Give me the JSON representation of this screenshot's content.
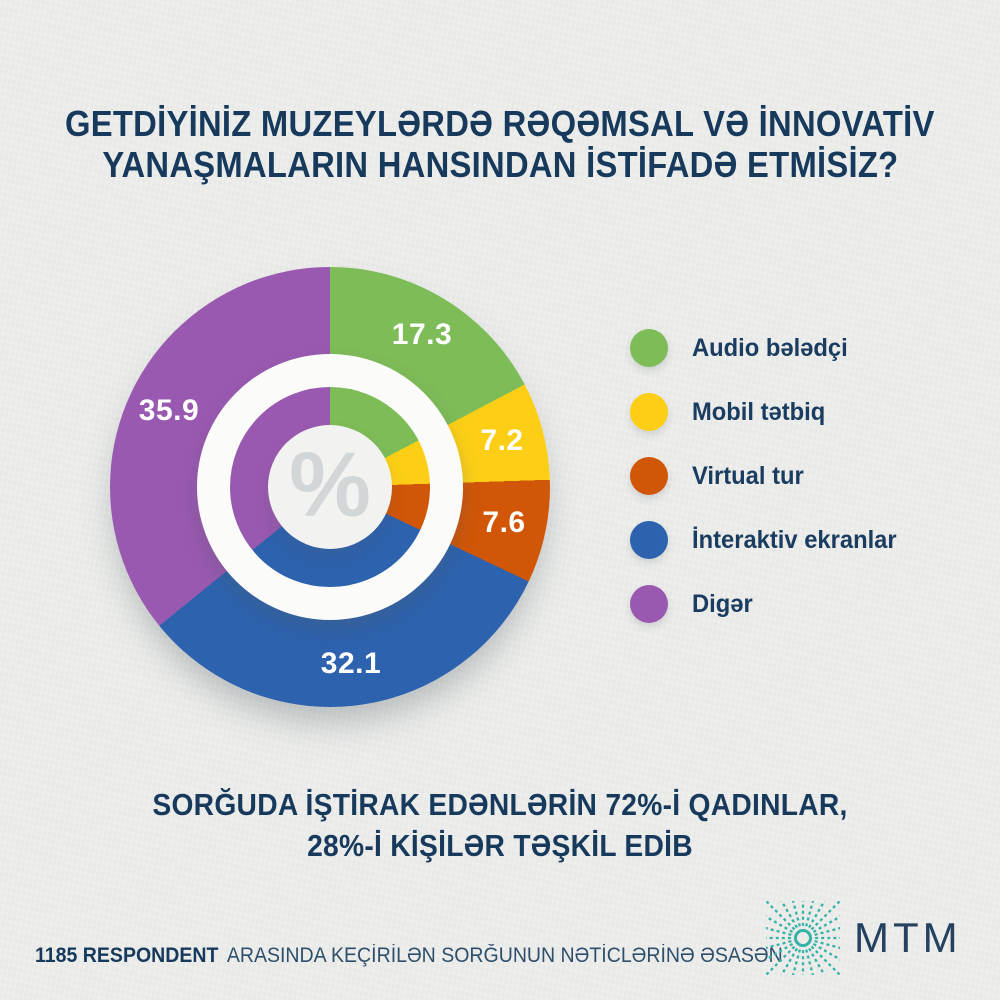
{
  "title": {
    "line1": "GETDİYİNİZ MUZEYLƏRDƏ RƏQƏMSAL VƏ İNNOVATİV",
    "line2": "YANAŞMALARIN HANSINDAN İSTİFADƏ ETMİSİZ?"
  },
  "chart_data": {
    "type": "pie",
    "variant": "double-donut",
    "title": "GETDİYİNİZ MUZEYLƏRDƏ RƏQƏMSAL VƏ İNNOVATİV YANAŞMALARIN HANSINDAN İSTİFADƏ ETMİSİZ?",
    "unit": "%",
    "center_symbol": "%",
    "start_angle_deg": 0,
    "direction": "clockwise",
    "legend_position": "right",
    "categories": [
      "Audio bələdçi",
      "Mobil tətbiq",
      "Virtual tur",
      "İnteraktiv ekranlar",
      "Digər"
    ],
    "values": [
      17.3,
      7.2,
      7.6,
      32.1,
      35.9
    ],
    "segments": [
      {
        "label": "Audio bələdçi",
        "value": 17.3,
        "color": "#7ebc58"
      },
      {
        "label": "Mobil tətbiq",
        "value": 7.2,
        "color": "#fccf16"
      },
      {
        "label": "Virtual tur",
        "value": 7.6,
        "color": "#d15607"
      },
      {
        "label": "İnteraktiv ekranlar",
        "value": 32.1,
        "color": "#2d62ae"
      },
      {
        "label": "Digər",
        "value": 35.9,
        "color": "#9959b0"
      }
    ]
  },
  "subtitle": {
    "line1": "SORĞUDA İŞTİRAK EDƏNLƏRİN 72%-İ QADINLAR,",
    "line2": "28%-İ KİŞİLƏR TƏŞKİL EDİB"
  },
  "footer": {
    "bold": "1185 RESPONDENT",
    "rest": "ARASINDA KEÇİRİLƏN SORĞUNUN NƏTİCLƏRİNƏ ƏSASƏN"
  },
  "brand": {
    "name": "MTM"
  },
  "colors": {
    "background": "#edeeec",
    "heading": "#16395c",
    "legend_text": "#1a3c60",
    "footer_text": "#2e4f6c",
    "ring_white": "#fbfcfa",
    "center_bg": "#f2f3f1",
    "percent_glyph": "#d2d6d7",
    "logo_teal": "#35b2a8",
    "brand_text": "#24415f",
    "value_label": "#ffffff"
  }
}
